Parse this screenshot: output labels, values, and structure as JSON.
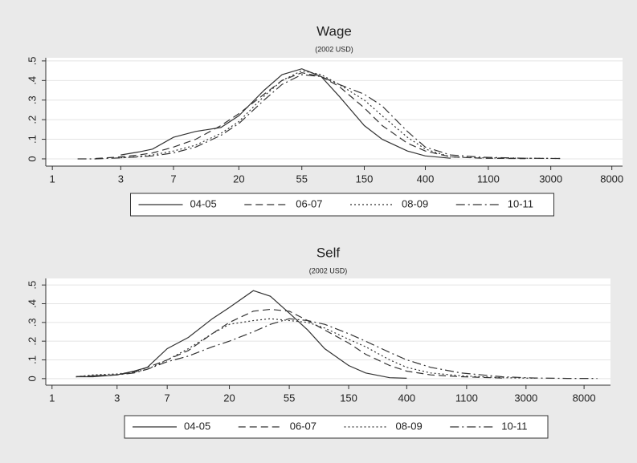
{
  "chart_data": [
    {
      "type": "line",
      "title": "Wage",
      "subtitle": "(2002 USD)",
      "log_x": true,
      "grid": true,
      "legend": "bottom",
      "x": [
        1.5,
        2,
        3,
        4,
        5,
        7,
        10,
        15,
        20,
        30,
        40,
        55,
        75,
        100,
        150,
        200,
        300,
        400,
        600,
        1000,
        2000,
        3500
      ],
      "xlim": [
        0.9,
        9500
      ],
      "xticks": [
        1,
        3,
        7,
        20,
        55,
        150,
        400,
        1100,
        3000,
        8000
      ],
      "ylim": [
        -0.037,
        0.516
      ],
      "yticks": [
        0,
        {
          "value": 0.1,
          "label": ".1"
        },
        {
          "value": 0.2,
          "label": ".2"
        },
        {
          "value": 0.3,
          "label": ".3"
        },
        {
          "value": 0.4,
          "label": ".4"
        },
        {
          "value": 0.5,
          "label": ".5"
        }
      ],
      "series": [
        {
          "name": "04-05",
          "color": "#333333",
          "dash": "solid",
          "values": [
            null,
            null,
            0.02,
            0.035,
            0.05,
            0.11,
            0.14,
            0.16,
            0.22,
            0.35,
            0.43,
            0.46,
            0.42,
            0.32,
            0.17,
            0.1,
            0.04,
            0.015,
            0.003,
            null,
            null,
            null
          ]
        },
        {
          "name": "06-07",
          "color": "#333333",
          "dash": "dashed",
          "values": [
            null,
            0.002,
            0.01,
            0.02,
            0.03,
            0.06,
            0.1,
            0.17,
            0.23,
            0.33,
            0.4,
            0.44,
            0.42,
            0.37,
            0.26,
            0.17,
            0.08,
            0.04,
            0.01,
            0.003,
            0.001,
            null
          ]
        },
        {
          "name": "08-09",
          "color": "#333333",
          "dash": "dotted",
          "values": [
            null,
            null,
            0.005,
            0.012,
            0.02,
            0.04,
            0.07,
            0.13,
            0.19,
            0.32,
            0.4,
            0.45,
            0.43,
            0.38,
            0.3,
            0.22,
            0.11,
            0.05,
            0.01,
            0.005,
            0.003,
            0.002
          ]
        },
        {
          "name": "10-11",
          "color": "#333333",
          "dash": "dashdot",
          "values": [
            0,
            0,
            0.005,
            0.01,
            0.015,
            0.03,
            0.06,
            0.12,
            0.18,
            0.3,
            0.38,
            0.43,
            0.42,
            0.38,
            0.33,
            0.27,
            0.14,
            0.06,
            0.02,
            0.008,
            0.003,
            0.002
          ]
        }
      ]
    },
    {
      "type": "line",
      "title": "Self",
      "subtitle": "(2002 USD)",
      "log_x": true,
      "grid": true,
      "legend": "bottom",
      "x": [
        1.5,
        2,
        3,
        4,
        5,
        7,
        10,
        15,
        20,
        30,
        40,
        55,
        75,
        100,
        150,
        200,
        300,
        400,
        600,
        1000,
        2000,
        3500,
        6000,
        10000
      ],
      "xlim": [
        0.9,
        12500
      ],
      "xticks": [
        1,
        3,
        7,
        20,
        55,
        150,
        400,
        1100,
        3000,
        8000
      ],
      "ylim": [
        -0.035,
        0.535
      ],
      "yticks": [
        0,
        {
          "value": 0.1,
          "label": ".1"
        },
        {
          "value": 0.2,
          "label": ".2"
        },
        {
          "value": 0.3,
          "label": ".3"
        },
        {
          "value": 0.4,
          "label": ".4"
        },
        {
          "value": 0.5,
          "label": ".5"
        }
      ],
      "series": [
        {
          "name": "04-05",
          "color": "#333333",
          "dash": "solid",
          "values": [
            0.01,
            0.01,
            0.02,
            0.04,
            0.06,
            0.16,
            0.22,
            0.32,
            0.38,
            0.47,
            0.44,
            0.35,
            0.26,
            0.16,
            0.07,
            0.03,
            0.005,
            0.002,
            null,
            null,
            null,
            null,
            null,
            null
          ]
        },
        {
          "name": "06-07",
          "color": "#333333",
          "dash": "dashed",
          "values": [
            0.01,
            0.015,
            0.02,
            0.035,
            0.06,
            0.1,
            0.15,
            0.24,
            0.3,
            0.36,
            0.37,
            0.36,
            0.31,
            0.26,
            0.19,
            0.13,
            0.07,
            0.04,
            0.02,
            0.01,
            0.003,
            null,
            null,
            null
          ]
        },
        {
          "name": "08-09",
          "color": "#333333",
          "dash": "dotted",
          "values": [
            0.01,
            0.02,
            0.025,
            0.035,
            0.05,
            0.1,
            0.16,
            0.24,
            0.29,
            0.31,
            0.32,
            0.31,
            0.3,
            0.27,
            0.21,
            0.17,
            0.1,
            0.06,
            0.03,
            0.015,
            0.005,
            0.002,
            null,
            null
          ]
        },
        {
          "name": "10-11",
          "color": "#333333",
          "dash": "dashdot",
          "values": [
            0.01,
            0.015,
            0.02,
            0.03,
            0.05,
            0.09,
            0.12,
            0.17,
            0.2,
            0.25,
            0.29,
            0.32,
            0.31,
            0.29,
            0.24,
            0.2,
            0.14,
            0.1,
            0.06,
            0.03,
            0.01,
            0.003,
            0.001,
            0.001
          ]
        }
      ]
    }
  ]
}
